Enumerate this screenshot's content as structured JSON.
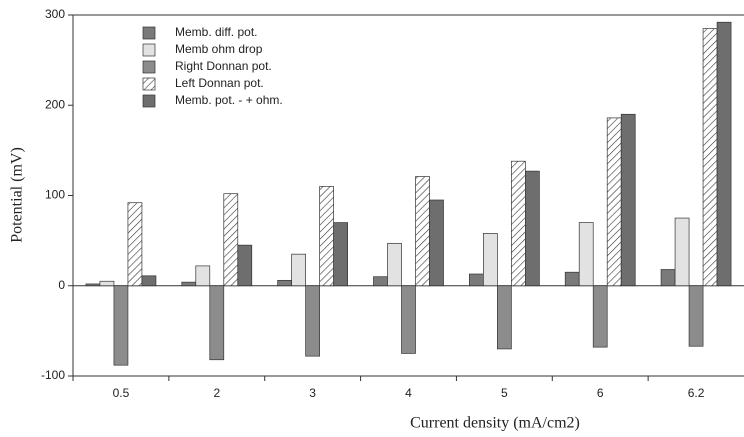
{
  "chart_data": {
    "type": "bar",
    "ylabel": "Potential (mV)",
    "xlabel": "Current density (mA/cm2)",
    "categories": [
      "0.5",
      "2",
      "3",
      "4",
      "5",
      "6",
      "6.2"
    ],
    "series": [
      {
        "name": "Memb. diff. pot.",
        "color": "#7a7a7a",
        "values": [
          2,
          4,
          6,
          10,
          13,
          15,
          18
        ]
      },
      {
        "name": "Memb ohm drop",
        "color": "#e2e2e2",
        "values": [
          5,
          22,
          35,
          47,
          58,
          70,
          75
        ]
      },
      {
        "name": "Right Donnan pot.",
        "color": "#8c8c8c",
        "values": [
          -88,
          -82,
          -78,
          -75,
          -70,
          -68,
          -67
        ]
      },
      {
        "name": "Left Donnan pot.",
        "color": "#ffffff",
        "hatch": true,
        "values": [
          92,
          102,
          110,
          121,
          138,
          186,
          285
        ]
      },
      {
        "name": "Memb. pot. - + ohm.",
        "color": "#6e6e6e",
        "values": [
          11,
          45,
          70,
          95,
          127,
          190,
          292
        ]
      }
    ],
    "ylim": [
      -100,
      300
    ],
    "yticks": [
      -100,
      0,
      100,
      200,
      300
    ],
    "grid": false
  }
}
